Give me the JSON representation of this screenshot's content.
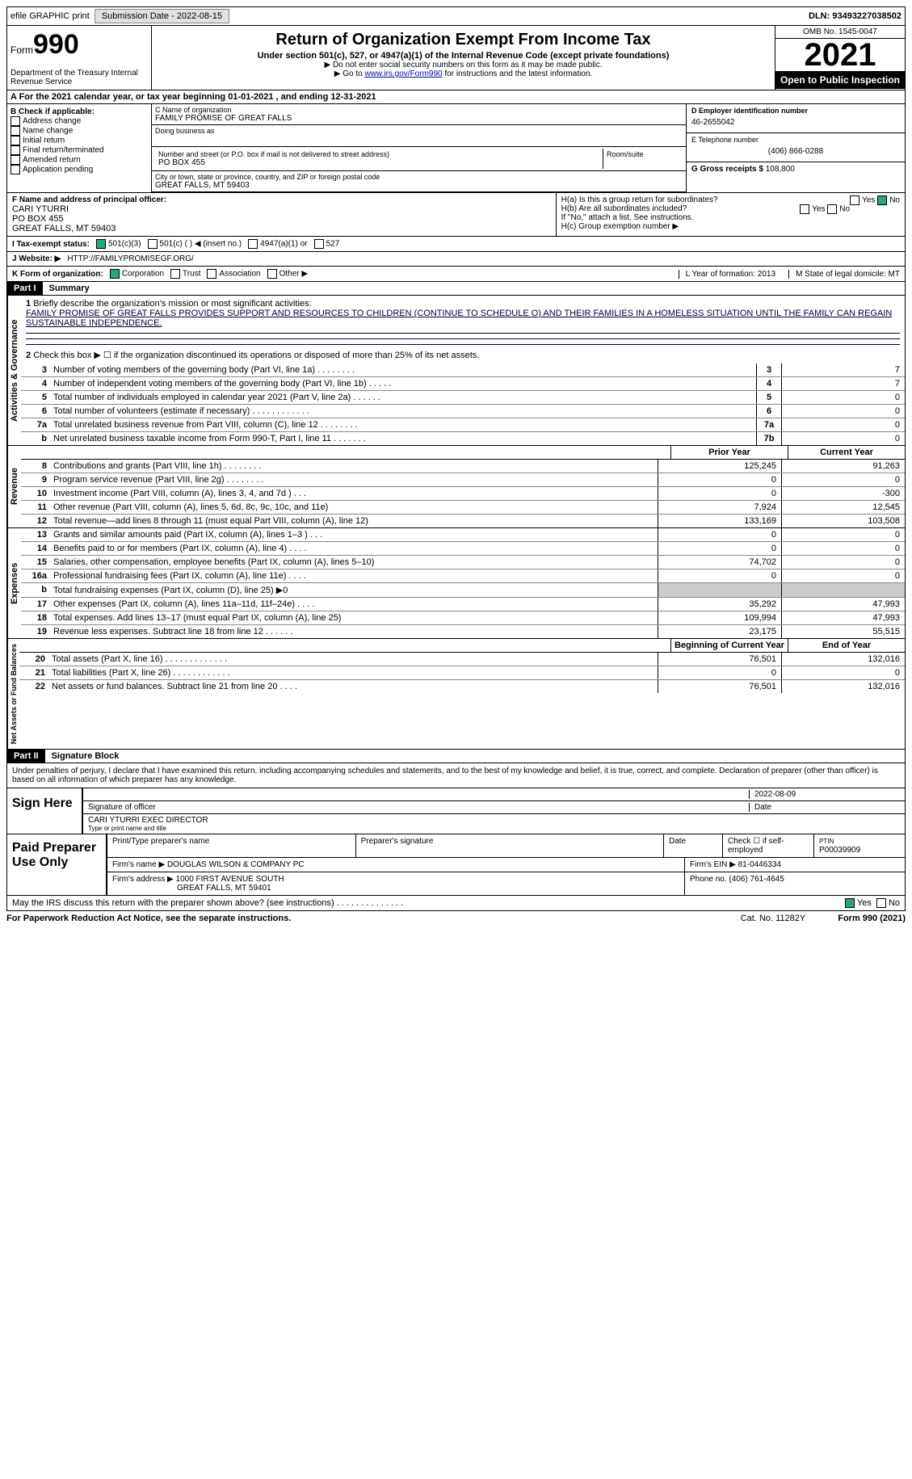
{
  "topbar": {
    "efile": "efile GRAPHIC print",
    "submission": "Submission Date - 2022-08-15",
    "dln": "DLN: 93493227038502"
  },
  "header": {
    "form": "Form",
    "num": "990",
    "dept": "Department of the Treasury Internal Revenue Service",
    "title": "Return of Organization Exempt From Income Tax",
    "sub": "Under section 501(c), 527, or 4947(a)(1) of the Internal Revenue Code (except private foundations)",
    "arrow1": "▶ Do not enter social security numbers on this form as it may be made public.",
    "arrow2_pre": "▶ Go to ",
    "arrow2_link": "www.irs.gov/Form990",
    "arrow2_post": " for instructions and the latest information.",
    "omb": "OMB No. 1545-0047",
    "year": "2021",
    "inspect": "Open to Public Inspection"
  },
  "A": {
    "text": "A For the 2021 calendar year, or tax year beginning 01-01-2021    , and ending 12-31-2021"
  },
  "B": {
    "label": "B Check if applicable:",
    "items": [
      "Address change",
      "Name change",
      "Initial return",
      "Final return/terminated",
      "Amended return",
      "Application pending"
    ]
  },
  "C": {
    "name_label": "C Name of organization",
    "name": "FAMILY PROMISE OF GREAT FALLS",
    "dba_label": "Doing business as",
    "addr_label": "Number and street (or P.O. box if mail is not delivered to street address)",
    "room_label": "Room/suite",
    "addr": "PO BOX 455",
    "city_label": "City or town, state or province, country, and ZIP or foreign postal code",
    "city": "GREAT FALLS, MT  59403"
  },
  "D": {
    "ein_label": "D Employer identification number",
    "ein": "46-2655042",
    "phone_label": "E Telephone number",
    "phone": "(406) 866-0288",
    "gross_label": "G Gross receipts $",
    "gross": "108,800"
  },
  "F": {
    "label": "F  Name and address of principal officer:",
    "name": "CARI YTURRI",
    "addr": "PO BOX 455",
    "city": "GREAT FALLS, MT  59403"
  },
  "H": {
    "a": "H(a)  Is this a group return for subordinates?",
    "b": "H(b)  Are all subordinates included?",
    "b2": "If \"No,\" attach a list. See instructions.",
    "c": "H(c)  Group exemption number ▶",
    "yes": "Yes",
    "no": "No"
  },
  "I": {
    "label": "I   Tax-exempt status:",
    "o1": "501(c)(3)",
    "o2": "501(c) (  ) ◀ (insert no.)",
    "o3": "4947(a)(1) or",
    "o4": "527"
  },
  "J": {
    "label": "J   Website: ▶",
    "url": "HTTP://FAMILYPROMISEGF.ORG/"
  },
  "K": {
    "label": "K Form of organization:",
    "o1": "Corporation",
    "o2": "Trust",
    "o3": "Association",
    "o4": "Other ▶",
    "L": "L Year of formation: 2013",
    "M": "M State of legal domicile: MT"
  },
  "part1": {
    "hdr": "Part I",
    "title": "Summary",
    "side_ag": "Activities & Governance",
    "side_rev": "Revenue",
    "side_exp": "Expenses",
    "side_na": "Net Assets or Fund Balances",
    "l1_label": "Briefly describe the organization's mission or most significant activities:",
    "l1_text": "FAMILY PROMISE OF GREAT FALLS PROVIDES SUPPORT AND RESOURCES TO CHILDREN (CONTINUE TO SCHEDULE O) AND THEIR FAMILIES IN A HOMELESS SITUATION UNTIL THE FAMILY CAN REGAIN SUSTAINABLE INDEPENDENCE.",
    "l2": "Check this box ▶ ☐  if the organization discontinued its operations or disposed of more than 25% of its net assets.",
    "lines_ag": [
      {
        "n": "3",
        "t": "Number of voting members of the governing body (Part VI, line 1a)   .    .    .    .    .    .    .    .",
        "b": "3",
        "v": "7"
      },
      {
        "n": "4",
        "t": "Number of independent voting members of the governing body (Part VI, line 1b)  .    .    .    .    .",
        "b": "4",
        "v": "7"
      },
      {
        "n": "5",
        "t": "Total number of individuals employed in calendar year 2021 (Part V, line 2a)  .    .    .    .    .    .",
        "b": "5",
        "v": "0"
      },
      {
        "n": "6",
        "t": "Total number of volunteers (estimate if necessary)    .    .    .    .    .    .    .    .    .    .    .    .",
        "b": "6",
        "v": "0"
      },
      {
        "n": "7a",
        "t": "Total unrelated business revenue from Part VIII, column (C), line 12   .    .    .    .    .    .    .    .",
        "b": "7a",
        "v": "0"
      },
      {
        "n": "b",
        "t": "Net unrelated business taxable income from Form 990-T, Part I, line 11  .    .    .    .    .    .    .",
        "b": "7b",
        "v": "0"
      }
    ],
    "col_prior": "Prior Year",
    "col_current": "Current Year",
    "lines_rev": [
      {
        "n": "8",
        "t": "Contributions and grants (Part VIII, line 1h)   .    .    .    .    .    .    .    .",
        "p": "125,245",
        "c": "91,263"
      },
      {
        "n": "9",
        "t": "Program service revenue (Part VIII, line 2g)   .    .    .    .    .    .    .    .",
        "p": "0",
        "c": "0"
      },
      {
        "n": "10",
        "t": "Investment income (Part VIII, column (A), lines 3, 4, and 7d )   .    .    .",
        "p": "0",
        "c": "-300"
      },
      {
        "n": "11",
        "t": "Other revenue (Part VIII, column (A), lines 5, 6d, 8c, 9c, 10c, and 11e)",
        "p": "7,924",
        "c": "12,545"
      },
      {
        "n": "12",
        "t": "Total revenue—add lines 8 through 11 (must equal Part VIII, column (A), line 12)",
        "p": "133,169",
        "c": "103,508"
      }
    ],
    "lines_exp": [
      {
        "n": "13",
        "t": "Grants and similar amounts paid (Part IX, column (A), lines 1–3 )  .    .    .",
        "p": "0",
        "c": "0"
      },
      {
        "n": "14",
        "t": "Benefits paid to or for members (Part IX, column (A), line 4)  .    .    .    .",
        "p": "0",
        "c": "0"
      },
      {
        "n": "15",
        "t": "Salaries, other compensation, employee benefits (Part IX, column (A), lines 5–10)",
        "p": "74,702",
        "c": "0"
      },
      {
        "n": "16a",
        "t": "Professional fundraising fees (Part IX, column (A), line 11e)  .    .    .    .",
        "p": "0",
        "c": "0"
      },
      {
        "n": "b",
        "t": "Total fundraising expenses (Part IX, column (D), line 25) ▶0",
        "p": "",
        "c": "",
        "g": true
      },
      {
        "n": "17",
        "t": "Other expenses (Part IX, column (A), lines 11a–11d, 11f–24e)  .    .    .    .",
        "p": "35,292",
        "c": "47,993"
      },
      {
        "n": "18",
        "t": "Total expenses. Add lines 13–17 (must equal Part IX, column (A), line 25)",
        "p": "109,994",
        "c": "47,993"
      },
      {
        "n": "19",
        "t": "Revenue less expenses. Subtract line 18 from line 12  .    .    .    .    .    .",
        "p": "23,175",
        "c": "55,515"
      }
    ],
    "col_beg": "Beginning of Current Year",
    "col_end": "End of Year",
    "lines_na": [
      {
        "n": "20",
        "t": "Total assets (Part X, line 16)  .    .    .    .    .    .    .    .    .    .    .    .    .",
        "p": "76,501",
        "c": "132,016"
      },
      {
        "n": "21",
        "t": "Total liabilities (Part X, line 26)   .    .    .    .    .    .    .    .    .    .    .    .",
        "p": "0",
        "c": "0"
      },
      {
        "n": "22",
        "t": "Net assets or fund balances. Subtract line 21 from line 20  .    .    .    .",
        "p": "76,501",
        "c": "132,016"
      }
    ]
  },
  "part2": {
    "hdr": "Part II",
    "title": "Signature Block",
    "decl": "Under penalties of perjury, I declare that I have examined this return, including accompanying schedules and statements, and to the best of my knowledge and belief, it is true, correct, and complete. Declaration of preparer (other than officer) is based on all information of which preparer has any knowledge.",
    "sign_here": "Sign Here",
    "sig_officer": "Signature of officer",
    "sig_date": "2022-08-09",
    "date_label": "Date",
    "name_title": "CARI YTURRI EXEC DIRECTOR",
    "type_label": "Type or print name and title",
    "paid": "Paid Preparer Use Only",
    "prep_name_label": "Print/Type preparer's name",
    "prep_sig_label": "Preparer's signature",
    "prep_date_label": "Date",
    "prep_check": "Check ☐ if self-employed",
    "ptin_label": "PTIN",
    "ptin": "P00039909",
    "firm_name_label": "Firm's name     ▶",
    "firm_name": "DOUGLAS WILSON & COMPANY PC",
    "firm_ein_label": "Firm's EIN ▶",
    "firm_ein": "81-0446334",
    "firm_addr_label": "Firm's address ▶",
    "firm_addr1": "1000 FIRST AVENUE SOUTH",
    "firm_addr2": "GREAT FALLS, MT  59401",
    "firm_phone_label": "Phone no.",
    "firm_phone": "(406) 761-4645",
    "discuss": "May the IRS discuss this return with the preparer shown above? (see instructions)   .    .    .    .    .    .    .    .    .    .    .    .    .    .",
    "yes": "Yes",
    "no": "No"
  },
  "footer": {
    "left": "For Paperwork Reduction Act Notice, see the separate instructions.",
    "mid": "Cat. No. 11282Y",
    "right": "Form 990 (2021)"
  }
}
